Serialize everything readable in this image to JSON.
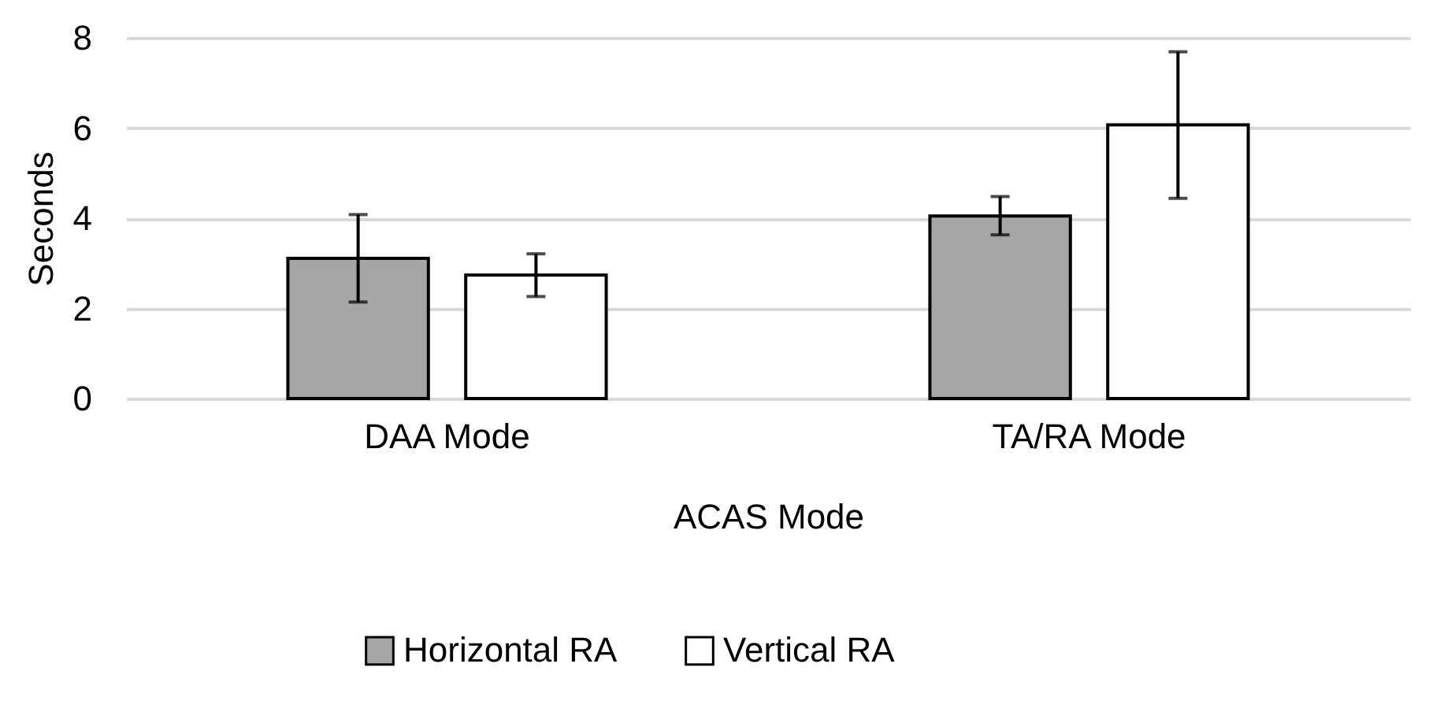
{
  "chart_data": {
    "type": "bar",
    "xlabel": "ACAS Mode",
    "ylabel": "Seconds",
    "categories": [
      "DAA Mode",
      "TA/RA Mode"
    ],
    "series": [
      {
        "name": "Horizontal RA",
        "color": "#a6a6a6",
        "values": [
          3.11,
          4.05
        ],
        "errors": [
          [
            2.14,
            4.08
          ],
          [
            3.63,
            4.48
          ]
        ]
      },
      {
        "name": "Vertical RA",
        "color": "#ffffff",
        "values": [
          2.74,
          6.07
        ],
        "errors": [
          [
            2.26,
            3.21
          ],
          [
            4.44,
            7.69
          ]
        ]
      }
    ],
    "ylim": [
      0,
      8
    ],
    "yticks": [
      0,
      2,
      4,
      6,
      8
    ],
    "grid": "y",
    "legend": "bottom"
  }
}
